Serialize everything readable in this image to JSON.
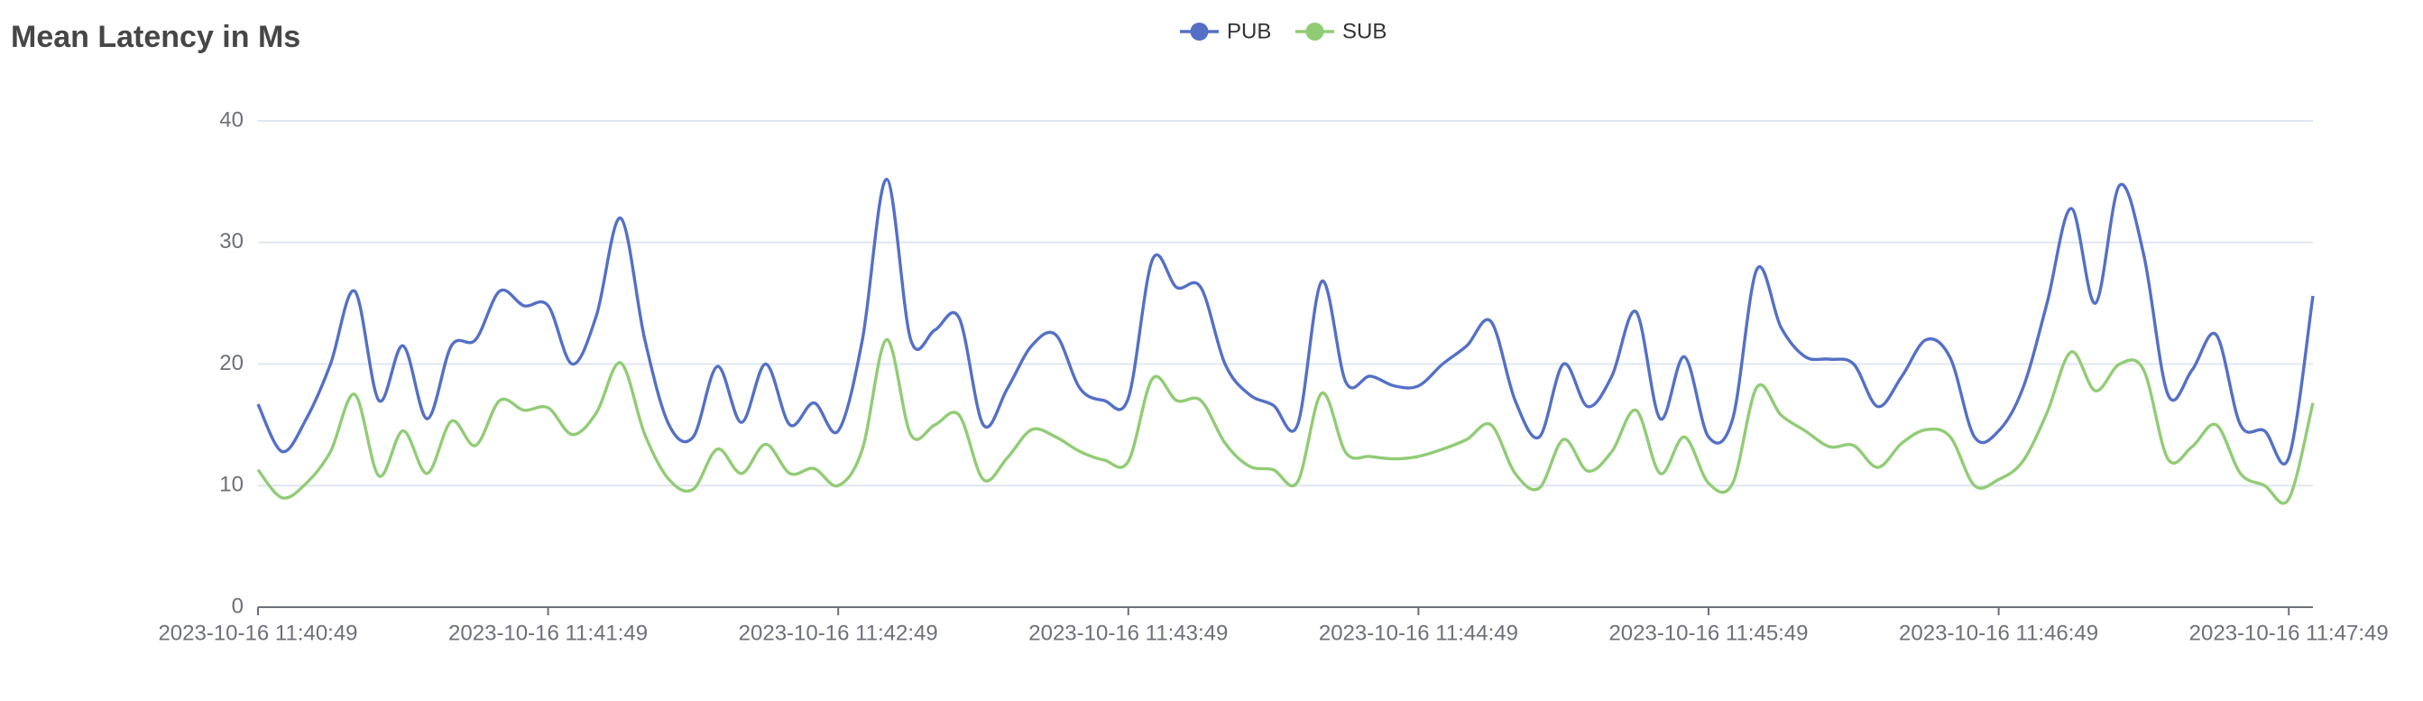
{
  "chart_data": {
    "type": "line",
    "title": "Mean Latency in Ms",
    "x_start": "2023-10-16 11:40:49",
    "x_step_seconds": 5,
    "xlim": [
      "2023-10-16 11:40:49",
      "2023-10-16 11:47:54"
    ],
    "xticks": [
      "2023-10-16 11:40:49",
      "2023-10-16 11:41:49",
      "2023-10-16 11:42:49",
      "2023-10-16 11:43:49",
      "2023-10-16 11:44:49",
      "2023-10-16 11:45:49",
      "2023-10-16 11:46:49",
      "2023-10-16 11:47:49"
    ],
    "ylim": [
      0,
      40
    ],
    "yticks": [
      0,
      10,
      20,
      30,
      40
    ],
    "grid": true,
    "legend": "top",
    "series": [
      {
        "name": "PUB",
        "color": "#5470c6",
        "values": [
          16.7,
          12.8,
          15.5,
          20,
          26,
          17,
          21.5,
          15.5,
          21.5,
          22,
          26,
          24.8,
          24.8,
          20,
          24,
          32,
          22,
          15,
          14,
          19.8,
          15.2,
          20,
          15,
          16.8,
          14.5,
          22,
          35.2,
          22,
          22.8,
          23.8,
          15,
          18,
          21.5,
          22.4,
          18,
          17,
          17.2,
          28.6,
          26.3,
          26.3,
          20,
          17.5,
          16.6,
          15,
          26.8,
          18.5,
          19,
          18.2,
          18.2,
          20,
          21.5,
          23.5,
          17,
          14,
          20,
          16.5,
          19,
          24.3,
          15.5,
          20.6,
          14,
          15.5,
          27.8,
          23,
          20.6,
          20.4,
          20,
          16.5,
          19,
          22,
          20.5,
          14,
          14.5,
          18,
          25,
          32.8,
          25,
          34.7,
          29,
          17.5,
          19.5,
          22.4,
          15,
          14.5,
          12.3,
          25.6
        ]
      },
      {
        "name": "SUB",
        "color": "#91cc75",
        "values": [
          11.3,
          9,
          10.2,
          12.8,
          17.5,
          10.8,
          14.5,
          11,
          15.3,
          13.3,
          17,
          16.2,
          16.4,
          14.2,
          16,
          20.1,
          14.2,
          10.5,
          9.7,
          13,
          11,
          13.4,
          11,
          11.4,
          10,
          13,
          22,
          14.2,
          15,
          15.8,
          10.5,
          12.3,
          14.6,
          14,
          12.8,
          12.1,
          12,
          18.8,
          17,
          17,
          13.5,
          11.6,
          11.3,
          10.3,
          17.6,
          12.7,
          12.4,
          12.2,
          12.4,
          13,
          13.8,
          15,
          11,
          9.8,
          13.8,
          11.2,
          12.8,
          16.2,
          11,
          14,
          10.2,
          10.2,
          18.1,
          15.8,
          14.5,
          13.2,
          13.3,
          11.5,
          13.5,
          14.6,
          14,
          10,
          10.5,
          12,
          16,
          21,
          17.8,
          20,
          19.5,
          12.2,
          13.2,
          15,
          11,
          10,
          8.9,
          16.8
        ]
      }
    ]
  }
}
